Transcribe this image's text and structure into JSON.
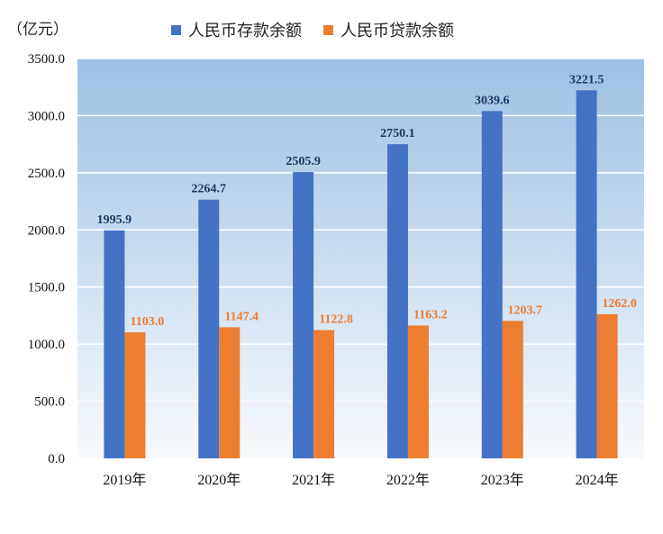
{
  "unit_label": "（亿元）",
  "colors": {
    "deposit": "#4472C4",
    "loan": "#ED7D31",
    "deposit_label": "#1F3864",
    "loan_label": "#ED7D31",
    "grid": "#ffffff"
  },
  "chart_data": {
    "type": "bar",
    "categories": [
      "2019年",
      "2020年",
      "2021年",
      "2022年",
      "2023年",
      "2024年"
    ],
    "series": [
      {
        "name": "人民币存款余额",
        "values": [
          1995.9,
          2264.7,
          2505.9,
          2750.1,
          3039.6,
          3221.5
        ],
        "labels": [
          "1995.9",
          "2264.7",
          "2505.9",
          "2750.1",
          "3039.6",
          "3221.5"
        ]
      },
      {
        "name": "人民币贷款余额",
        "values": [
          1103.0,
          1147.4,
          1122.8,
          1163.2,
          1203.7,
          1262.0
        ],
        "labels": [
          "1103.0",
          "1147.4",
          "1122.8",
          "1163.2",
          "1203.7",
          "1262.0"
        ]
      }
    ],
    "ylim": [
      0,
      3500
    ],
    "yticks": [
      "0.0",
      "500.0",
      "1000.0",
      "1500.0",
      "2000.0",
      "2500.0",
      "3000.0",
      "3500.0"
    ],
    "grid": true,
    "legend_position": "top-center"
  }
}
